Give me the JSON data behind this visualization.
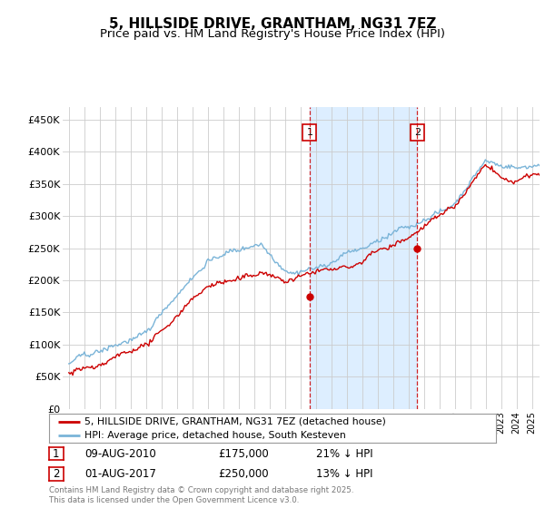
{
  "title": "5, HILLSIDE DRIVE, GRANTHAM, NG31 7EZ",
  "subtitle": "Price paid vs. HM Land Registry's House Price Index (HPI)",
  "bg_color": "#ffffff",
  "plot_bg_color": "#ffffff",
  "line1_color": "#cc0000",
  "line2_color": "#7ab4d8",
  "shade_color": "#ddeeff",
  "sale1_x": 2010.6,
  "sale1_price": 175000,
  "sale2_x": 2017.58,
  "sale2_price": 250000,
  "ylim": [
    0,
    470000
  ],
  "yticks": [
    0,
    50000,
    100000,
    150000,
    200000,
    250000,
    300000,
    350000,
    400000,
    450000
  ],
  "ytick_labels": [
    "£0",
    "£50K",
    "£100K",
    "£150K",
    "£200K",
    "£250K",
    "£300K",
    "£350K",
    "£400K",
    "£450K"
  ],
  "xlim_min": 1994.6,
  "xlim_max": 2025.5,
  "legend_line1": "5, HILLSIDE DRIVE, GRANTHAM, NG31 7EZ (detached house)",
  "legend_line2": "HPI: Average price, detached house, South Kesteven",
  "table_row1": [
    "1",
    "09-AUG-2010",
    "£175,000",
    "21% ↓ HPI"
  ],
  "table_row2": [
    "2",
    "01-AUG-2017",
    "£250,000",
    "13% ↓ HPI"
  ],
  "footer": "Contains HM Land Registry data © Crown copyright and database right 2025.\nThis data is licensed under the Open Government Licence v3.0."
}
